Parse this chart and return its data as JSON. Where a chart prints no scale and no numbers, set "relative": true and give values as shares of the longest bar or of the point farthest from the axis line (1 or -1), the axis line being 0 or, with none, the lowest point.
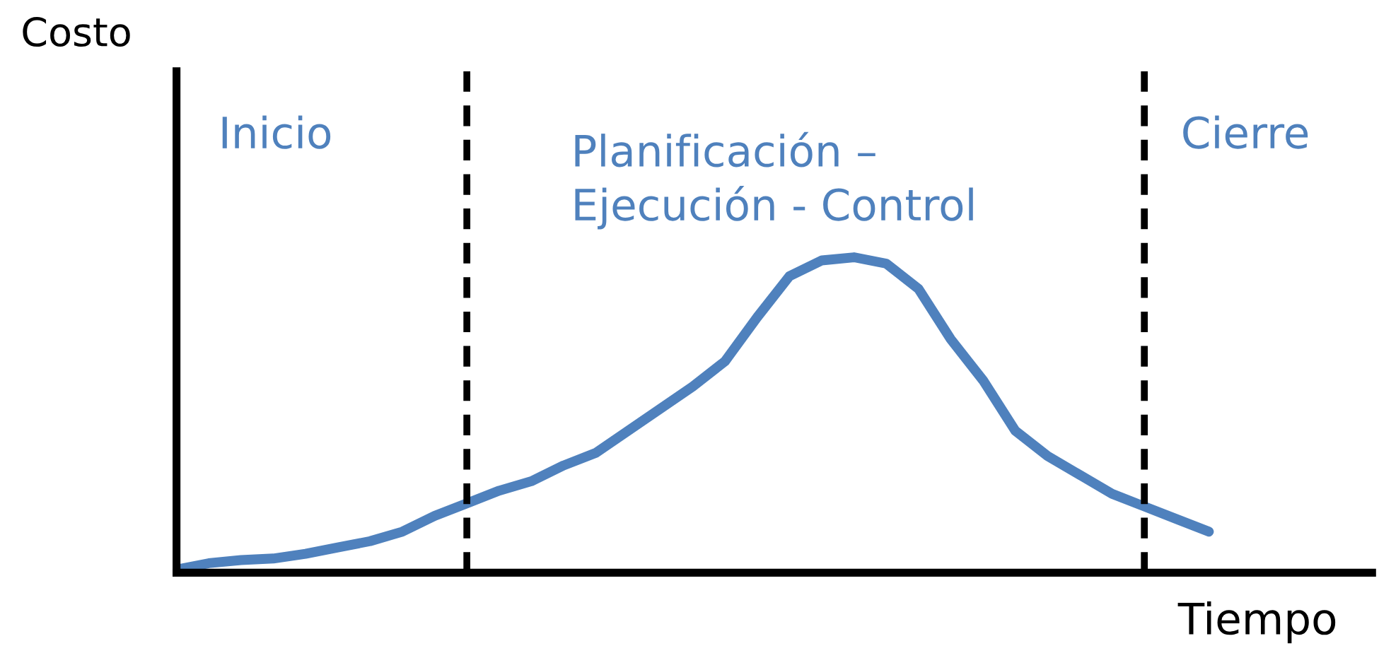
{
  "chart_data": {
    "type": "line",
    "relative": true,
    "xlabel": "Tiempo",
    "color": "#4f81bd",
    "marker": "none",
    "line_style": "solid",
    "grid": false,
    "legend": false,
    "categories": [
      null,
      null,
      null,
      null,
      null,
      null,
      null,
      null,
      null,
      null,
      null,
      null,
      null,
      null,
      null,
      null,
      null,
      null,
      null,
      null,
      null,
      null,
      null,
      null,
      null,
      null,
      null,
      null,
      null,
      null,
      null,
      null,
      null
    ],
    "values": [
      0.01,
      0.03,
      0.04,
      0.045,
      0.06,
      0.08,
      0.1,
      0.13,
      0.18,
      0.22,
      0.26,
      0.29,
      0.34,
      0.38,
      0.45,
      0.52,
      0.59,
      0.67,
      0.81,
      0.94,
      0.99,
      1,
      0.98,
      0.9,
      0.74,
      0.61,
      0.45,
      0.37,
      0.31,
      0.25,
      0.21,
      0.17,
      0.13
    ],
    "annotations": [
      "Inicio",
      "Planificación –\nEjecución - Control",
      "Cierre",
      "Costo"
    ]
  }
}
